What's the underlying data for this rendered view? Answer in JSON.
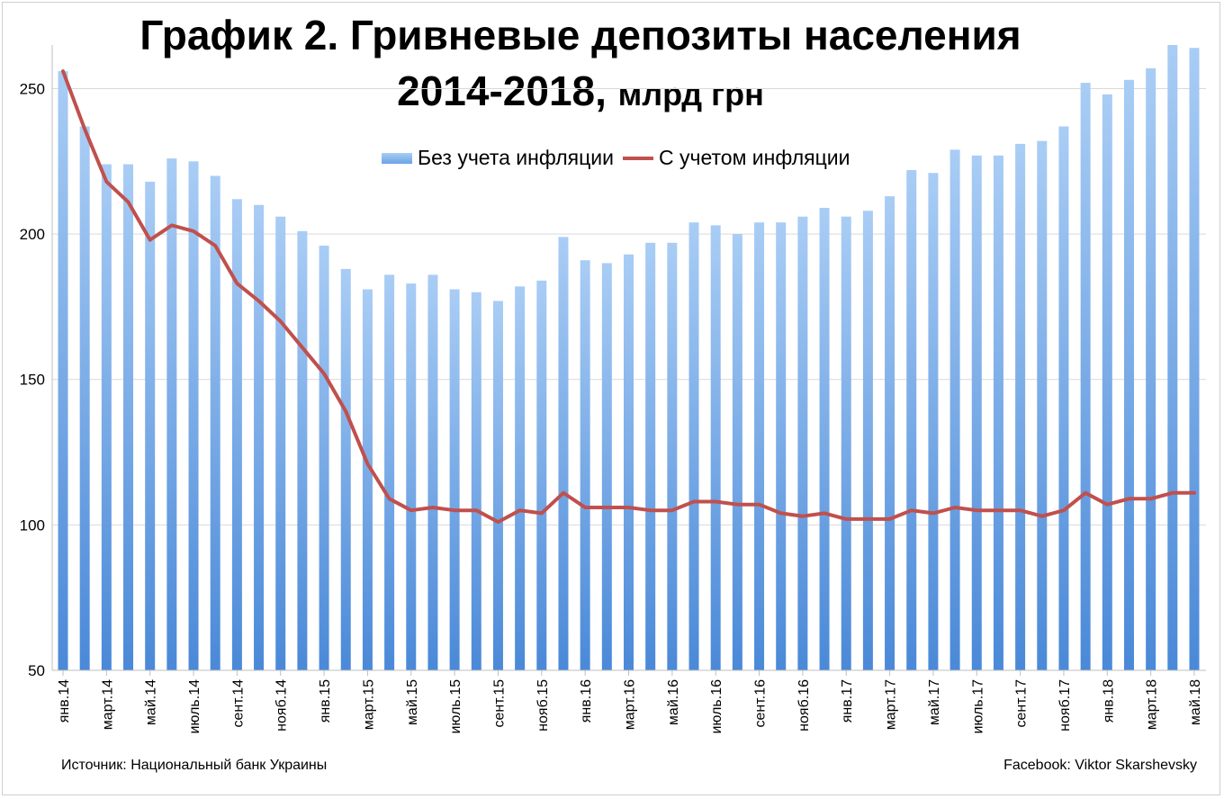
{
  "title_line1": "График 2. Гривневые депозиты населения",
  "title_line2_main": "2014-2018,",
  "title_line2_unit": "млрд грн",
  "source": "Источник: Национальный банк Украины",
  "credit": "Facebook: Viktor Skarshevsky",
  "chart_data": {
    "type": "bar",
    "ylim": [
      50,
      265
    ],
    "yticks": [
      50,
      100,
      150,
      200,
      250
    ],
    "grid": true,
    "legend_position": "top-center",
    "colors": {
      "bars": "#6aa4e6",
      "line": "#c0504d"
    },
    "categories": [
      "01.14",
      "02.14",
      "03.14",
      "04.14",
      "05.14",
      "06.14",
      "07.14",
      "08.14",
      "09.14",
      "10.14",
      "11.14",
      "12.14",
      "01.15",
      "02.15",
      "03.15",
      "04.15",
      "05.15",
      "06.15",
      "07.15",
      "08.15",
      "09.15",
      "10.15",
      "11.15",
      "12.15",
      "01.16",
      "02.16",
      "03.16",
      "04.16",
      "05.16",
      "06.16",
      "07.16",
      "08.16",
      "09.16",
      "10.16",
      "11.16",
      "12.16",
      "01.17",
      "02.17",
      "03.17",
      "04.17",
      "05.17",
      "06.17",
      "07.17",
      "08.17",
      "09.17",
      "10.17",
      "11.17",
      "12.17",
      "01.18",
      "02.18",
      "03.18",
      "04.18",
      "05.18"
    ],
    "x_tick_labels": [
      "янв.14",
      "март.14",
      "май.14",
      "июль.14",
      "сент.14",
      "нояб.14",
      "янв.15",
      "март.15",
      "май.15",
      "июль.15",
      "сент.15",
      "нояб.15",
      "янв.16",
      "март.16",
      "май.16",
      "июль.16",
      "сент.16",
      "нояб.16",
      "янв.17",
      "март.17",
      "май.17",
      "июль.17",
      "сент.17",
      "нояб.17",
      "янв.18",
      "март.18",
      "май.18"
    ],
    "series": [
      {
        "name": "Без учета инфляции",
        "type": "bar",
        "values": [
          256,
          237,
          224,
          224,
          218,
          226,
          225,
          220,
          212,
          210,
          206,
          201,
          196,
          188,
          181,
          186,
          183,
          186,
          181,
          180,
          177,
          182,
          184,
          199,
          191,
          190,
          193,
          197,
          197,
          204,
          203,
          200,
          204,
          204,
          206,
          209,
          206,
          208,
          213,
          222,
          221,
          229,
          227,
          227,
          231,
          232,
          237,
          252,
          248,
          253,
          257,
          265,
          264
        ]
      },
      {
        "name": "С учетом инфляции",
        "type": "line",
        "values": [
          256,
          236,
          218,
          211,
          198,
          203,
          201,
          196,
          183,
          177,
          170,
          161,
          152,
          139,
          121,
          109,
          105,
          106,
          105,
          105,
          101,
          105,
          104,
          111,
          106,
          106,
          106,
          105,
          105,
          108,
          108,
          107,
          107,
          104,
          103,
          104,
          102,
          102,
          102,
          105,
          104,
          106,
          105,
          105,
          105,
          103,
          105,
          111,
          107,
          109,
          109,
          111,
          111
        ]
      }
    ]
  }
}
